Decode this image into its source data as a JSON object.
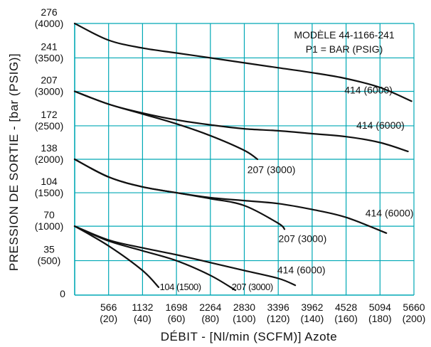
{
  "chart_data": {
    "type": "line",
    "title": "",
    "xlabel": "DÉBIT - [Nl/min (SCFM)]  Azote",
    "ylabel": "PRESSION DE SORTIE - [bar (PSIG)]",
    "xlim": [
      0,
      5660
    ],
    "ylim": [
      0,
      276
    ],
    "grid": true,
    "x_ticks": [
      {
        "value": 566,
        "label": "566",
        "sub": "(20)"
      },
      {
        "value": 1132,
        "label": "1132",
        "sub": "(40)"
      },
      {
        "value": 1698,
        "label": "1698",
        "sub": "(60)"
      },
      {
        "value": 2264,
        "label": "2264",
        "sub": "(80)"
      },
      {
        "value": 2830,
        "label": "2830",
        "sub": "(100)"
      },
      {
        "value": 3396,
        "label": "3396",
        "sub": "(120)"
      },
      {
        "value": 3962,
        "label": "3962",
        "sub": "(140)"
      },
      {
        "value": 4528,
        "label": "4528",
        "sub": "(160)"
      },
      {
        "value": 5094,
        "label": "5094",
        "sub": "(180)"
      },
      {
        "value": 5660,
        "label": "5660",
        "sub": "(200)"
      }
    ],
    "y_ticks": [
      {
        "value": 0,
        "label": "0",
        "sub": ""
      },
      {
        "value": 35,
        "label": "35",
        "sub": "(500)"
      },
      {
        "value": 70,
        "label": "70",
        "sub": "(1000)"
      },
      {
        "value": 104,
        "label": "104",
        "sub": "(1500)"
      },
      {
        "value": 138,
        "label": "138",
        "sub": "(2000)"
      },
      {
        "value": 172,
        "label": "172",
        "sub": "(2500)"
      },
      {
        "value": 207,
        "label": "207",
        "sub": "(3000)"
      },
      {
        "value": 241,
        "label": "241",
        "sub": "(3500)"
      },
      {
        "value": 276,
        "label": "276",
        "sub": "(4000)"
      }
    ],
    "legend": {
      "position": "top-right",
      "lines": [
        "MODÈLE 44-1166-241",
        "P1 = BAR (PSIG)"
      ]
    },
    "series": [
      {
        "label": "414 (6000)",
        "group": 276,
        "x": [
          0,
          566,
          1132,
          1698,
          2264,
          2830,
          3396,
          3962,
          4528,
          5094,
          5620
        ],
        "y": [
          276,
          259,
          251,
          246,
          241,
          236,
          231,
          226,
          220,
          211,
          197
        ]
      },
      {
        "label": "414 (6000)",
        "group": 207,
        "x": [
          0,
          566,
          1132,
          1698,
          2264,
          2830,
          3396,
          3962,
          4528,
          5094,
          5560
        ],
        "y": [
          207,
          194,
          185,
          178,
          173,
          169,
          167,
          164,
          161,
          155,
          146
        ]
      },
      {
        "label": "207 (3000)",
        "group": 207,
        "x": [
          0,
          566,
          1132,
          1698,
          2264,
          2830,
          3050
        ],
        "y": [
          207,
          194,
          184,
          174,
          162,
          147,
          138
        ]
      },
      {
        "label": "414 (6000)",
        "group": 138,
        "x": [
          0,
          566,
          1132,
          1698,
          2264,
          2830,
          3396,
          3962,
          4528,
          5200
        ],
        "y": [
          138,
          120,
          110,
          104,
          99,
          96,
          93,
          87,
          79,
          63
        ]
      },
      {
        "label": "207 (3000)",
        "group": 138,
        "x": [
          0,
          566,
          1132,
          1698,
          2264,
          2830,
          3396,
          3500
        ],
        "y": [
          138,
          120,
          110,
          104,
          98,
          91,
          73,
          67
        ]
      },
      {
        "label": "414 (6000)",
        "group": 70,
        "x": [
          0,
          566,
          1132,
          1698,
          2264,
          2830,
          3396,
          3680
        ],
        "y": [
          70,
          56,
          48,
          41,
          33,
          25,
          17,
          10
        ]
      },
      {
        "label": "207 (3000)",
        "group": 70,
        "x": [
          0,
          566,
          1132,
          1698,
          2264,
          2680
        ],
        "y": [
          70,
          55,
          45,
          35,
          20,
          5
        ]
      },
      {
        "label": "104 (1500)",
        "group": 70,
        "x": [
          0,
          566,
          1132,
          1400
        ],
        "y": [
          70,
          50,
          25,
          8
        ]
      }
    ],
    "annotations": [
      {
        "text": "414 (6000)",
        "x": 4500,
        "y": 205,
        "style": "normal"
      },
      {
        "text": "414 (6000)",
        "x": 4700,
        "y": 169,
        "style": "normal"
      },
      {
        "text": "207 (3000)",
        "x": 2880,
        "y": 124,
        "style": "normal"
      },
      {
        "text": "414 (6000)",
        "x": 4850,
        "y": 80,
        "style": "normal"
      },
      {
        "text": "207 (3000)",
        "x": 3400,
        "y": 54,
        "style": "normal"
      },
      {
        "text": "414 (6000)",
        "x": 3380,
        "y": 22,
        "style": "normal"
      },
      {
        "text": "207 (3000)",
        "x": 2620,
        "y": 5,
        "style": "small"
      },
      {
        "text": "104 (1500)",
        "x": 1420,
        "y": 5,
        "style": "small"
      }
    ],
    "colors": {
      "grid": "#00a8b5",
      "curve": "#111111"
    }
  }
}
